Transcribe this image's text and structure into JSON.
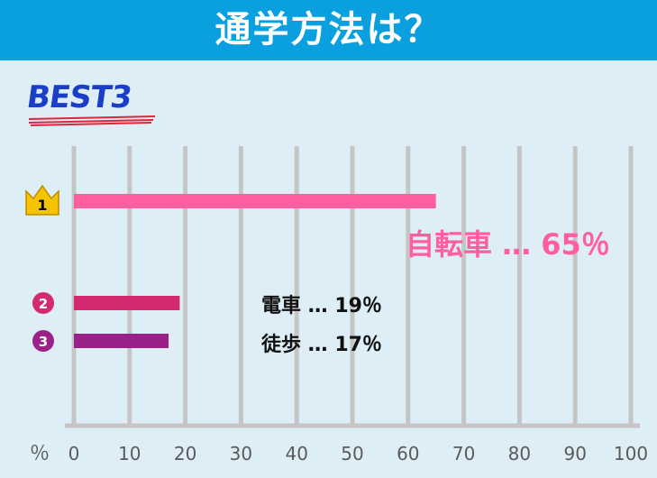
{
  "title": "通学方法は？",
  "badge": "BEST3",
  "chart_data": {
    "type": "bar",
    "orientation": "horizontal",
    "categories": [
      "自転車",
      "電車",
      "徒歩"
    ],
    "values": [
      65,
      19,
      17
    ],
    "value_labels": [
      "自転車 … 65％",
      "電車 … 19％",
      "徒歩 … 17％"
    ],
    "rank_labels": [
      "1",
      "2",
      "3"
    ],
    "colors": [
      "#ff5fa0",
      "#d42a72",
      "#9a2187"
    ],
    "label_colors": [
      "#ff5fa0",
      "#111111",
      "#111111"
    ],
    "xlim": [
      0,
      100
    ],
    "x_ticks": [
      "0",
      "10",
      "20",
      "30",
      "40",
      "50",
      "60",
      "70",
      "80",
      "90",
      "100"
    ],
    "xlabel": "％",
    "grid": true
  },
  "colors": {
    "title_bg": "#0aa0e0",
    "page_bg": "#deeef6",
    "grid": "#c5c5c5",
    "crown": "#f4c400",
    "badge_text": "#1a3ec8",
    "badge_underline": "#e0263a"
  }
}
